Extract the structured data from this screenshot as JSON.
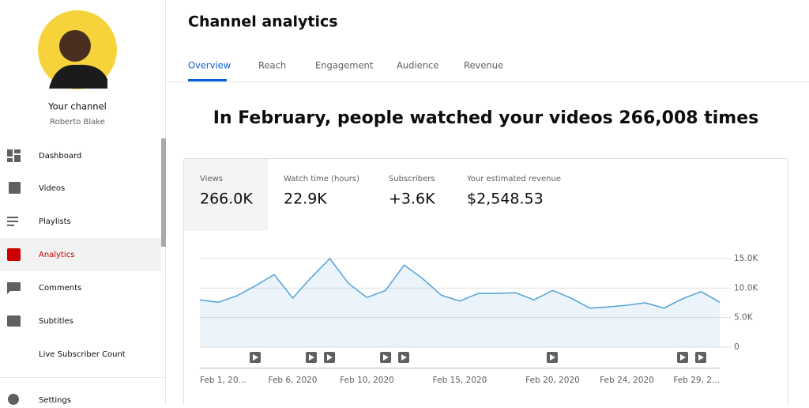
{
  "sidebar": {
    "channel_label": "Your channel",
    "channel_name": "Roberto Blake",
    "nav": [
      "Dashboard",
      "Videos",
      "Playlists",
      "Analytics",
      "Comments",
      "Subtitles",
      "Live Subscriber Count",
      "Settings"
    ]
  },
  "header": {
    "title": "Channel analytics",
    "tabs": [
      "Overview",
      "Reach",
      "Engagement",
      "Audience",
      "Revenue"
    ]
  },
  "headline": "In February, people watched your videos 266,008 times",
  "metrics": [
    {
      "label": "Views",
      "value": "266.0K"
    },
    {
      "label": "Watch time (hours)",
      "value": "22.9K"
    },
    {
      "label": "Subscribers",
      "value": "+3.6K"
    },
    {
      "label": "Your estimated revenue",
      "value": "$2,548.53"
    }
  ],
  "chart_data": {
    "type": "line",
    "color": "#5aa6d6",
    "categories": [
      "Feb 1, 20...",
      null,
      null,
      null,
      null,
      "Feb 6, 2020",
      null,
      null,
      null,
      "Feb 10, 2020",
      null,
      null,
      null,
      null,
      "Feb 15, 2020",
      null,
      null,
      null,
      null,
      "Feb 20, 2020",
      null,
      null,
      null,
      "Feb 24, 2020",
      null,
      null,
      null,
      null,
      "Feb 29, 2..."
    ],
    "values": [
      8000,
      7600,
      8700,
      10400,
      12300,
      8300,
      11800,
      15000,
      10800,
      8400,
      9600,
      13900,
      11600,
      8800,
      7800,
      9100,
      9100,
      9200,
      8000,
      9600,
      8300,
      6600,
      6800,
      7100,
      7500,
      6600,
      8200,
      9400,
      7600
    ],
    "ylim": [
      0,
      15000
    ],
    "yticks": [
      0,
      {
        "value": 5000,
        "label": "5.0K"
      },
      {
        "value": 10000,
        "label": "10.0K"
      },
      {
        "value": 15000,
        "label": "15.0K"
      }
    ],
    "grid": true
  }
}
